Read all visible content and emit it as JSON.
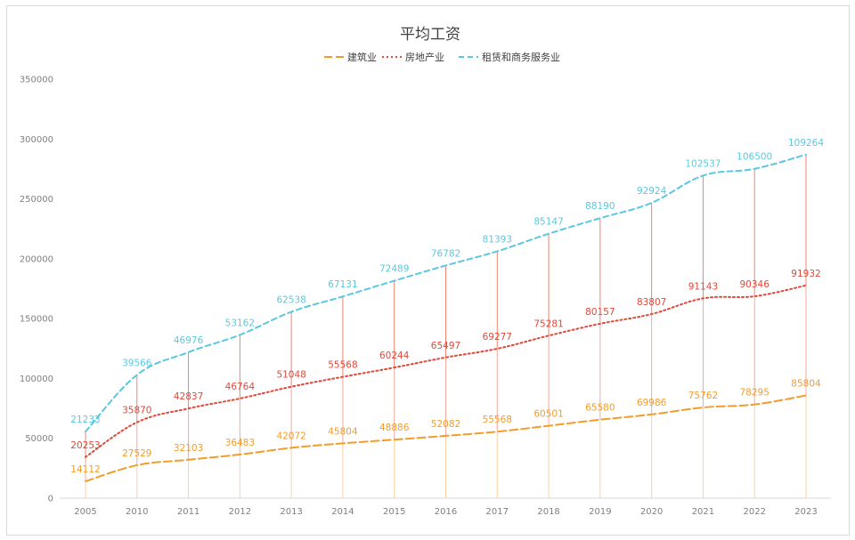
{
  "chart_data": {
    "type": "line",
    "title": "平均工资",
    "xlabel": "",
    "ylabel": "",
    "x": [
      "2005",
      "2010",
      "2011",
      "2012",
      "2013",
      "2014",
      "2015",
      "2016",
      "2017",
      "2018",
      "2019",
      "2020",
      "2021",
      "2022",
      "2023"
    ],
    "ylim": [
      0,
      350000
    ],
    "yticks": [
      0,
      50000,
      100000,
      150000,
      200000,
      250000,
      300000,
      350000
    ],
    "stacked": true,
    "legend_position": "top",
    "grid": false,
    "series": [
      {
        "name": "建筑业",
        "color": "#f39c2b",
        "dash": "long-dash",
        "values": [
          14112,
          27529,
          32103,
          36483,
          42072,
          45804,
          48886,
          52082,
          55568,
          60501,
          65580,
          69986,
          75762,
          78295,
          85804
        ]
      },
      {
        "name": "房地产业",
        "color": "#e0483a",
        "dash": "dotted",
        "values": [
          20253,
          35870,
          42837,
          46764,
          51048,
          55568,
          60244,
          65497,
          69277,
          75281,
          80157,
          83807,
          91143,
          90346,
          91932
        ]
      },
      {
        "name": "租赁和商务服务业",
        "color": "#5bc8e0",
        "dash": "dashed",
        "values": [
          21233,
          39566,
          46976,
          53162,
          62538,
          67131,
          72489,
          76782,
          81393,
          85147,
          88190,
          92924,
          102537,
          106500,
          109264
        ]
      }
    ]
  }
}
